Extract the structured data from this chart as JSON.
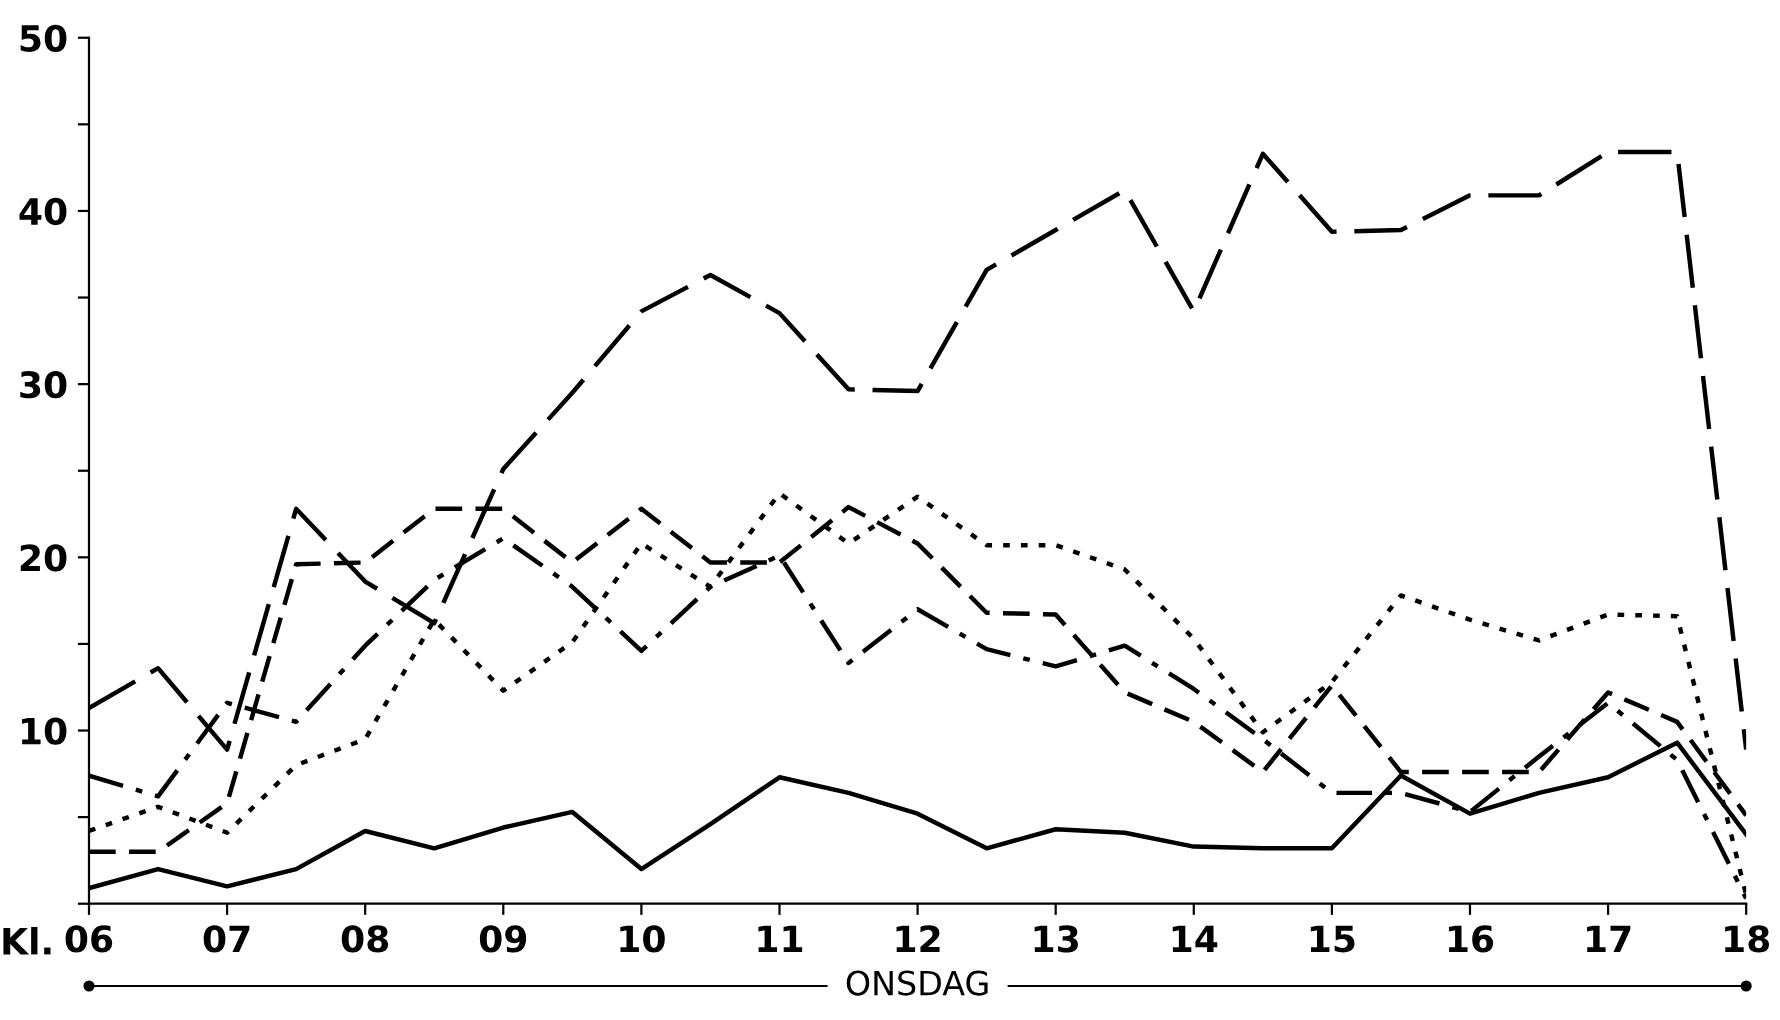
{
  "chart_data": {
    "type": "line",
    "xlabel": "ONSDAG",
    "annotations": [
      "Kl."
    ],
    "x": [
      6,
      6.5,
      7,
      7.5,
      8,
      8.5,
      9,
      9.5,
      10,
      10.5,
      11,
      11.5,
      12,
      12.5,
      13,
      13.5,
      14,
      14.5,
      15,
      15.5,
      16,
      16.5,
      17,
      17.5,
      18
    ],
    "series": [
      {
        "color": "#000000",
        "line_style": "solid",
        "values": [
          0.9,
          2.0,
          1.0,
          2.0,
          4.2,
          3.2,
          4.4,
          5.3,
          2.0,
          4.6,
          7.3,
          6.4,
          5.2,
          3.2,
          4.3,
          4.1,
          3.3,
          3.2,
          3.2,
          7.4,
          5.2,
          6.4,
          7.3,
          9.3,
          4.0
        ]
      },
      {
        "color": "#000000",
        "line_style": "longdash",
        "values": [
          11.3,
          13.6,
          8.9,
          22.8,
          18.6,
          16.2,
          25.1,
          29.5,
          34.2,
          36.3,
          34.1,
          29.7,
          29.6,
          36.6,
          38.9,
          41.2,
          34.2,
          43.3,
          38.8,
          38.9,
          40.9,
          40.9,
          43.4,
          43.4,
          8.9
        ]
      },
      {
        "color": "#000000",
        "line_style": "dashed",
        "values": [
          3.0,
          3.0,
          5.8,
          19.6,
          19.7,
          22.8,
          22.8,
          19.7,
          22.8,
          19.7,
          19.7,
          22.9,
          20.8,
          16.8,
          16.7,
          12.2,
          10.5,
          7.6,
          12.6,
          7.6,
          7.6,
          7.6,
          12.2,
          10.5,
          5.1
        ]
      },
      {
        "color": "#000000",
        "line_style": "dashdot",
        "values": [
          7.4,
          6.2,
          11.6,
          10.5,
          14.9,
          18.7,
          21.1,
          18.3,
          14.6,
          18.3,
          20.1,
          13.9,
          17.0,
          14.7,
          13.7,
          14.9,
          12.4,
          9.5,
          6.4,
          6.4,
          5.3,
          8.5,
          11.6,
          8.3,
          0.3
        ]
      },
      {
        "color": "#000000",
        "line_style": "dotted",
        "values": [
          4.2,
          5.6,
          4.1,
          8.0,
          9.5,
          16.4,
          12.3,
          15.1,
          20.8,
          18.3,
          23.7,
          20.8,
          23.5,
          20.7,
          20.7,
          19.3,
          15.3,
          9.9,
          12.8,
          17.8,
          16.4,
          15.2,
          16.7,
          16.6,
          0.5
        ]
      }
    ],
    "xlim": [
      6,
      18
    ],
    "ylim": [
      0,
      50
    ],
    "xticks": [
      {
        "value": 6,
        "label": "06"
      },
      {
        "value": 7,
        "label": "07"
      },
      {
        "value": 8,
        "label": "08"
      },
      {
        "value": 9,
        "label": "09"
      },
      10,
      11,
      12,
      13,
      14,
      15,
      16,
      17,
      18
    ],
    "yticks": [
      {
        "value": 0,
        "label": null
      },
      {
        "value": 5,
        "label": null
      },
      10,
      {
        "value": 15,
        "label": null
      },
      20,
      {
        "value": 25,
        "label": null
      },
      30,
      {
        "value": 35,
        "label": null
      },
      40,
      {
        "value": 45,
        "label": null
      },
      50
    ],
    "grid": false,
    "legend": false
  }
}
